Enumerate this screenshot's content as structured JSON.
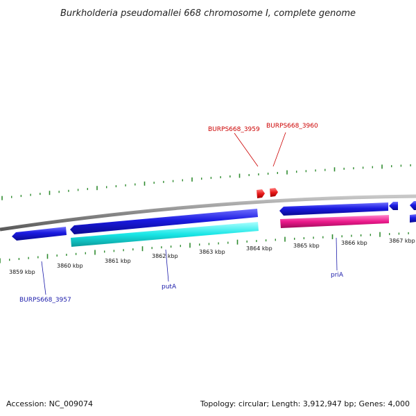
{
  "title": "Burkholderia pseudomallei 668 chromosome I, complete genome",
  "footer": {
    "accession": "Accession: NC_009074",
    "summary": "Topology: circular; Length: 3,912,947 bp; Genes: 4,000"
  },
  "scale_labels": [
    "3859 kbp",
    "3860 kbp",
    "3861 kbp",
    "3862 kbp",
    "3863 kbp",
    "3864 kbp",
    "3865 kbp",
    "3866 kbp",
    "3867 kbp"
  ],
  "gene_labels": {
    "burps3959": "BURPS668_3959",
    "burps3960": "BURPS668_3960",
    "burps3957": "BURPS668_3957",
    "putA": "putA",
    "priA": "priA"
  },
  "colors": {
    "reverse_cds": "#1010d8",
    "forward_small": "#e81818",
    "cyan_feature": "#19e6e6",
    "magenta_feature": "#ec1a8c",
    "backbone": "#8a8a8a",
    "tick": "#2e8b2e"
  }
}
